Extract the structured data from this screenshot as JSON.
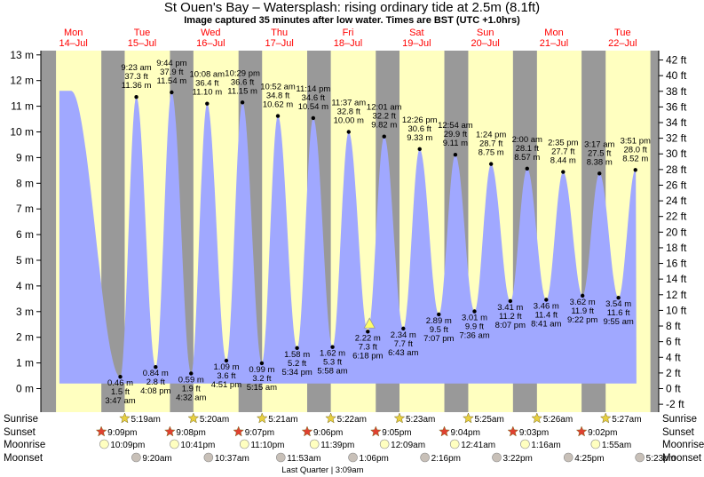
{
  "title": "St Ouen's Bay – Watersplash: rising  ordinary tide at 2.5m (8.1ft)",
  "subtitle": "Image captured 35 minutes after low water. Times are BST (UTC +1.0hrs)",
  "days": [
    {
      "dow": "Mon",
      "date": "14–Jul"
    },
    {
      "dow": "Tue",
      "date": "15–Jul"
    },
    {
      "dow": "Wed",
      "date": "16–Jul"
    },
    {
      "dow": "Thu",
      "date": "17–Jul"
    },
    {
      "dow": "Fri",
      "date": "18–Jul"
    },
    {
      "dow": "Sat",
      "date": "19–Jul"
    },
    {
      "dow": "Sun",
      "date": "20–Jul"
    },
    {
      "dow": "Mon",
      "date": "21–Jul"
    },
    {
      "dow": "Tue",
      "date": "22–Jul"
    }
  ],
  "chart_data": {
    "type": "area",
    "left_axis": {
      "unit": "m",
      "min": -0.8,
      "max": 13.3,
      "ticks": [
        0,
        1,
        2,
        3,
        4,
        5,
        6,
        7,
        8,
        9,
        10,
        11,
        12,
        13
      ]
    },
    "right_axis": {
      "unit": "ft",
      "ticks": [
        -2,
        0,
        2,
        4,
        6,
        8,
        10,
        12,
        14,
        16,
        18,
        20,
        22,
        24,
        26,
        28,
        30,
        32,
        34,
        36,
        38,
        40,
        42
      ]
    },
    "x_range_hours": [
      0,
      216
    ],
    "x_note": "hours since 00:00 Mon 14-Jul",
    "colors": {
      "tide_fill": "#a0a8ff",
      "day_bg": "#ffffc0",
      "night_bg": "#999999",
      "day_label": "#ff0000",
      "marker_current": "#ffff66"
    },
    "tides": [
      {
        "t": 10.5,
        "m": 11.6,
        "labelled": false
      },
      {
        "t": 27.78,
        "m": 0.46,
        "ft": "1.5 ft",
        "time": "3:47 am"
      },
      {
        "t": 33.38,
        "m": 11.36,
        "ft": "37.3 ft",
        "time": "9:23 am"
      },
      {
        "t": 40.13,
        "m": 0.84,
        "ft": "2.8 ft",
        "time": "4:08 pm"
      },
      {
        "t": 45.73,
        "m": 11.54,
        "ft": "37.9 ft",
        "time": "9:44 pm"
      },
      {
        "t": 52.53,
        "m": 0.59,
        "ft": "1.9 ft",
        "time": "4:32 am"
      },
      {
        "t": 58.13,
        "m": 11.1,
        "ft": "36.4 ft",
        "time": "10:08 am"
      },
      {
        "t": 64.85,
        "m": 1.09,
        "ft": "3.6 ft",
        "time": "4:51 pm"
      },
      {
        "t": 70.48,
        "m": 11.15,
        "ft": "36.6 ft",
        "time": "10:29 pm"
      },
      {
        "t": 77.25,
        "m": 0.99,
        "ft": "3.2 ft",
        "time": "5:15 am"
      },
      {
        "t": 82.87,
        "m": 10.62,
        "ft": "34.8 ft",
        "time": "10:52 am"
      },
      {
        "t": 89.57,
        "m": 1.58,
        "ft": "5.2 ft",
        "time": "5:34 pm"
      },
      {
        "t": 95.23,
        "m": 10.54,
        "ft": "34.6 ft",
        "time": "11:14 pm"
      },
      {
        "t": 101.97,
        "m": 1.62,
        "ft": "5.3 ft",
        "time": "5:58 am"
      },
      {
        "t": 107.62,
        "m": 10.0,
        "ft": "32.8 ft",
        "time": "11:37 am"
      },
      {
        "t": 114.3,
        "m": 2.22,
        "ft": "7.3 ft",
        "time": "6:18 pm"
      },
      {
        "t": 120.02,
        "m": 9.82,
        "ft": "32.2 ft",
        "time": "12:01 am"
      },
      {
        "t": 126.72,
        "m": 2.34,
        "ft": "7.7 ft",
        "time": "6:43 am"
      },
      {
        "t": 132.43,
        "m": 9.33,
        "ft": "30.6 ft",
        "time": "12:26 pm"
      },
      {
        "t": 139.12,
        "m": 2.89,
        "ft": "9.5 ft",
        "time": "7:07 pm"
      },
      {
        "t": 144.9,
        "m": 9.11,
        "ft": "29.9 ft",
        "time": "12:54 am"
      },
      {
        "t": 151.6,
        "m": 3.01,
        "ft": "9.9 ft",
        "time": "7:36 am"
      },
      {
        "t": 157.4,
        "m": 8.75,
        "ft": "28.7 ft",
        "time": "1:24 pm"
      },
      {
        "t": 164.12,
        "m": 3.41,
        "ft": "11.2 ft",
        "time": "8:07 pm"
      },
      {
        "t": 170.0,
        "m": 8.57,
        "ft": "28.1 ft",
        "time": "2:00 am"
      },
      {
        "t": 176.68,
        "m": 3.46,
        "ft": "11.4 ft",
        "time": "8:41 am"
      },
      {
        "t": 182.58,
        "m": 8.44,
        "ft": "27.7 ft",
        "time": "2:35 pm"
      },
      {
        "t": 189.37,
        "m": 3.62,
        "ft": "11.9 ft",
        "time": "9:22 pm"
      },
      {
        "t": 195.28,
        "m": 8.38,
        "ft": "27.5 ft",
        "time": "3:17 am"
      },
      {
        "t": 201.92,
        "m": 3.54,
        "ft": "11.6 ft",
        "time": "9:55 am"
      },
      {
        "t": 207.85,
        "m": 8.52,
        "ft": "28.0 ft",
        "time": "3:51 pm"
      }
    ],
    "current": {
      "t": 114.9,
      "m": 2.5
    },
    "x_start": 6.5,
    "x_end": 208.2
  },
  "astro": {
    "row_labels": {
      "sunrise": "Sunrise",
      "sunset": "Sunset",
      "moonrise": "Moonrise",
      "moonset": "Moonset"
    },
    "sunrise": [
      {
        "day": 1,
        "time": "5:19am"
      },
      {
        "day": 2,
        "time": "5:20am"
      },
      {
        "day": 3,
        "time": "5:21am"
      },
      {
        "day": 4,
        "time": "5:22am"
      },
      {
        "day": 5,
        "time": "5:23am"
      },
      {
        "day": 6,
        "time": "5:25am"
      },
      {
        "day": 7,
        "time": "5:26am"
      },
      {
        "day": 8,
        "time": "5:27am"
      }
    ],
    "sunset": [
      {
        "day": 0,
        "time": "9:09pm"
      },
      {
        "day": 1,
        "time": "9:08pm"
      },
      {
        "day": 2,
        "time": "9:07pm"
      },
      {
        "day": 3,
        "time": "9:06pm"
      },
      {
        "day": 4,
        "time": "9:05pm"
      },
      {
        "day": 5,
        "time": "9:04pm"
      },
      {
        "day": 6,
        "time": "9:03pm"
      },
      {
        "day": 7,
        "time": "9:02pm"
      }
    ],
    "moonrise": [
      {
        "day": 0,
        "time": "10:09pm"
      },
      {
        "day": 1,
        "time": "10:41pm"
      },
      {
        "day": 2,
        "time": "11:10pm"
      },
      {
        "day": 3,
        "time": "11:39pm"
      },
      {
        "day": 5,
        "time": "12:09am"
      },
      {
        "day": 6,
        "time": "12:41am"
      },
      {
        "day": 7,
        "time": "1:16am"
      },
      {
        "day": 8,
        "time": "1:55am"
      }
    ],
    "moonset": [
      {
        "day": 1,
        "time": "9:20am"
      },
      {
        "day": 2,
        "time": "10:37am"
      },
      {
        "day": 3,
        "time": "11:53am"
      },
      {
        "day": 4,
        "time": "1:06pm"
      },
      {
        "day": 5,
        "time": "2:16pm"
      },
      {
        "day": 6,
        "time": "3:22pm"
      },
      {
        "day": 7,
        "time": "4:25pm"
      },
      {
        "day": 8,
        "time": "5:23pm"
      }
    ],
    "moon_phase": "Last Quarter | 3:09am"
  }
}
